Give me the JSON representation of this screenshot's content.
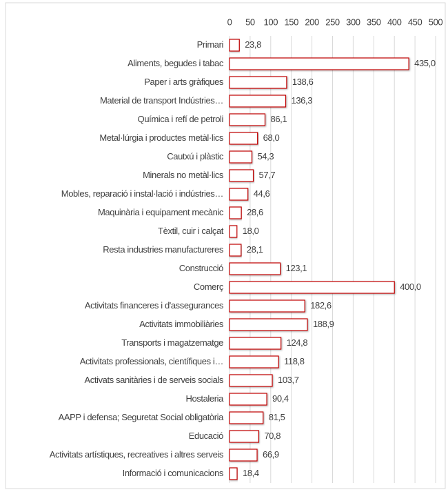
{
  "chart_data": {
    "type": "bar",
    "orientation": "horizontal",
    "categories": [
      "Primari",
      "Aliments, begudes i tabac",
      "Paper i arts gràfiques",
      "Material de transport Indústries…",
      "Química i refí de petroli",
      "Metal·lúrgia i productes metàl·lics",
      "Cautxú i plàstic",
      "Minerals no metàl·lics",
      "Mobles, reparació i instal·lació i indústries…",
      "Maquinària i equipament mecànic",
      "Tèxtil, cuir i calçat",
      "Resta industries manufactureres",
      "Construcció",
      "Comerç",
      "Activitats financeres i d'assegurances",
      "Activitats immobiliàries",
      "Transports i magatzematge",
      "Activitats professionals, científiques i…",
      "Activats sanitàries i de serveis socials",
      "Hostaleria",
      "AAPP i defensa; Seguretat Social obligatòria",
      "Educació",
      "Activitats artístiques, recreatives i altres serveis",
      "Informació i comunicacions"
    ],
    "values": [
      23.8,
      435.0,
      138.6,
      136.3,
      86.1,
      68.0,
      54.3,
      57.7,
      44.6,
      28.6,
      18.0,
      28.1,
      123.1,
      400.0,
      182.6,
      188.9,
      124.8,
      118.8,
      103.7,
      90.4,
      81.5,
      70.8,
      66.9,
      18.4
    ],
    "value_labels": [
      "23,8",
      "435,0",
      "138,6",
      "136,3",
      "86,1",
      "68,0",
      "54,3",
      "57,7",
      "44,6",
      "28,6",
      "18,0",
      "28,1",
      "123,1",
      "400,0",
      "182,6",
      "188,9",
      "124,8",
      "118,8",
      "103,7",
      "90,4",
      "81,5",
      "70,8",
      "66,9",
      "18,4"
    ],
    "color": "#c00000",
    "xlim": [
      0,
      500
    ],
    "xticks": [
      0,
      50,
      100,
      150,
      200,
      250,
      300,
      350,
      400,
      450,
      500
    ],
    "grid": true
  }
}
